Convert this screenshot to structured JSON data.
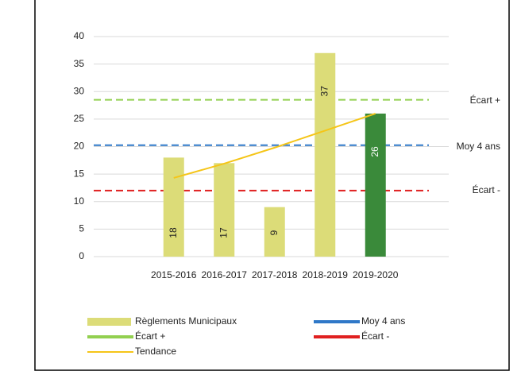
{
  "chart_data": {
    "type": "bar",
    "categories": [
      "2015-2016",
      "2016-2017",
      "2017-2018",
      "2018-2019",
      "2019-2020"
    ],
    "series": [
      {
        "name": "Règlements Municipaux",
        "type": "bar",
        "values": [
          18,
          17,
          9,
          37,
          26
        ],
        "colors": [
          "#dcdc78",
          "#dcdc78",
          "#dcdc78",
          "#dcdc78",
          "#3a8a3a"
        ]
      },
      {
        "name": "Tendance",
        "type": "line",
        "color": "#f5c518",
        "values": [
          14.3,
          16.9,
          19.8,
          22.9,
          26
        ]
      }
    ],
    "reference_lines": [
      {
        "name": "Écart +",
        "color": "#92d050",
        "value": 28.5
      },
      {
        "name": "Moy 4 ans",
        "color": "#2f78c8",
        "value": 20.25
      },
      {
        "name": "Écart -",
        "color": "#e02020",
        "value": 12
      }
    ],
    "ylim": [
      0,
      40
    ],
    "yticks": [
      0,
      5,
      10,
      15,
      20,
      25,
      30,
      35,
      40
    ],
    "grid": true
  }
}
